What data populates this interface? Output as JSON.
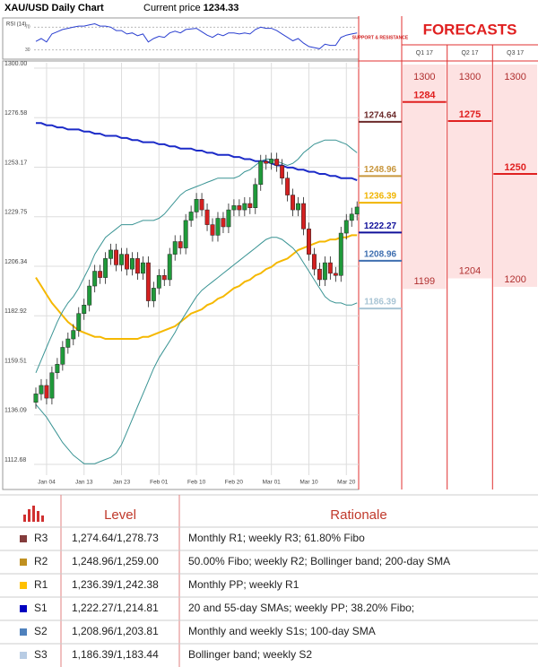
{
  "header": {
    "title": "XAU/USD Daily Chart",
    "current_price_label": "Current price",
    "current_price": 1234.33
  },
  "chart_data": [
    {
      "type": "candlestick",
      "categories": [
        null,
        null,
        "Jan 04",
        null,
        null,
        null,
        null,
        null,
        null,
        "Jan 13",
        null,
        null,
        null,
        null,
        null,
        null,
        "Jan 23",
        null,
        null,
        null,
        null,
        null,
        null,
        "Feb 01",
        null,
        null,
        null,
        null,
        null,
        null,
        "Feb 10",
        null,
        null,
        null,
        null,
        null,
        null,
        "Feb 20",
        null,
        null,
        null,
        null,
        null,
        null,
        "Mar 01",
        null,
        null,
        null,
        null,
        null,
        null,
        "Mar 10",
        null,
        null,
        null,
        null,
        null,
        null,
        "Mar 20",
        null,
        null
      ],
      "open": [
        1142,
        1146,
        1150,
        1144,
        1156,
        1160,
        1168,
        1172,
        1176,
        1184,
        1188,
        1197,
        1204,
        1201,
        1210,
        1214,
        1207,
        1212,
        1205,
        1210,
        1203,
        1208,
        1190,
        1196,
        1202,
        1200,
        1212,
        1218,
        1215,
        1228,
        1232,
        1238,
        1233,
        1226,
        1221,
        1229,
        1225,
        1233,
        1235,
        1233,
        1236,
        1234,
        1245,
        1256,
        1255,
        1257,
        1254,
        1248,
        1240,
        1233,
        1236,
        1224,
        1212,
        1205,
        1200,
        1208,
        1203,
        1202,
        1222,
        1228,
        1231
      ],
      "high": [
        1149,
        1153,
        1153,
        1159,
        1163,
        1171,
        1175,
        1179,
        1187,
        1191,
        1200,
        1207,
        1207,
        1213,
        1217,
        1217,
        1215,
        1215,
        1213,
        1213,
        1211,
        1211,
        1199,
        1205,
        1205,
        1215,
        1221,
        1221,
        1231,
        1235,
        1241,
        1241,
        1236,
        1229,
        1232,
        1232,
        1236,
        1238,
        1238,
        1239,
        1239,
        1248,
        1259,
        1259,
        1260,
        1260,
        1257,
        1251,
        1243,
        1239,
        1239,
        1227,
        1215,
        1208,
        1211,
        1211,
        1206,
        1225,
        1231,
        1234,
        1237
      ],
      "low": [
        1139,
        1143,
        1141,
        1141,
        1153,
        1157,
        1165,
        1169,
        1173,
        1181,
        1185,
        1194,
        1198,
        1198,
        1207,
        1204,
        1204,
        1202,
        1202,
        1200,
        1200,
        1187,
        1187,
        1193,
        1197,
        1197,
        1209,
        1212,
        1212,
        1225,
        1229,
        1230,
        1223,
        1218,
        1218,
        1222,
        1222,
        1230,
        1230,
        1230,
        1231,
        1231,
        1242,
        1252,
        1252,
        1251,
        1245,
        1237,
        1230,
        1230,
        1221,
        1209,
        1202,
        1197,
        1197,
        1200,
        1199,
        1199,
        1219,
        1225,
        1228
      ],
      "close": [
        1146,
        1150,
        1144,
        1156,
        1160,
        1168,
        1172,
        1176,
        1184,
        1188,
        1197,
        1204,
        1201,
        1210,
        1214,
        1207,
        1212,
        1205,
        1210,
        1203,
        1208,
        1190,
        1196,
        1202,
        1200,
        1212,
        1218,
        1215,
        1228,
        1232,
        1238,
        1233,
        1226,
        1221,
        1229,
        1225,
        1233,
        1235,
        1233,
        1236,
        1234,
        1245,
        1256,
        1255,
        1257,
        1254,
        1248,
        1240,
        1233,
        1236,
        1224,
        1212,
        1205,
        1200,
        1208,
        1203,
        1202,
        1222,
        1228,
        1231,
        1234.33
      ],
      "up_color": "#1f9a3a",
      "down_color": "#d42020",
      "series": [
        {
          "color": "#1c2bc8",
          "values": [
            1274,
            1274,
            1273,
            1273,
            1272,
            1272,
            1271,
            1271,
            1271,
            1270,
            1270,
            1269,
            1269,
            1268,
            1268,
            1268,
            1267,
            1267,
            1266,
            1266,
            1265,
            1265,
            1265,
            1264,
            1264,
            1263,
            1263,
            1262,
            1262,
            1262,
            1261,
            1261,
            1260,
            1260,
            1259,
            1259,
            1259,
            1258,
            1258,
            1257,
            1257,
            1256,
            1256,
            1256,
            1255,
            1254,
            1254,
            1253,
            1253,
            1252,
            1252,
            1251,
            1251,
            1250,
            1250,
            1249,
            1249,
            1248,
            1248,
            1248,
            1247
          ]
        },
        {
          "color": "#f5b800",
          "values": [
            1201,
            1197,
            1193,
            1189,
            1186,
            1183,
            1180,
            1178,
            1176,
            1175,
            1174,
            1173,
            1173,
            1172,
            1172,
            1172,
            1172,
            1172,
            1172,
            1172,
            1173,
            1173,
            1174,
            1175,
            1176,
            1177,
            1178,
            1180,
            1182,
            1184,
            1185,
            1186,
            1188,
            1189,
            1191,
            1192,
            1194,
            1196,
            1197,
            1199,
            1200,
            1202,
            1203,
            1205,
            1206,
            1208,
            1209,
            1210,
            1212,
            1214,
            1215,
            1216,
            1217,
            1218,
            1218,
            1219,
            1219,
            1220,
            1220,
            1221,
            1221
          ]
        },
        {
          "color": "#3a9494",
          "values": [
            1156,
            1162,
            1168,
            1174,
            1180,
            1185,
            1189,
            1192,
            1196,
            1201,
            1206,
            1212,
            1216,
            1220,
            1222,
            1224,
            1226,
            1226,
            1226,
            1227,
            1228,
            1228,
            1228,
            1229,
            1231,
            1234,
            1237,
            1240,
            1242,
            1243,
            1244,
            1245,
            1246,
            1247,
            1248,
            1248,
            1248,
            1248,
            1249,
            1251,
            1252,
            1254,
            1256,
            1257,
            1257,
            1256,
            1255,
            1254,
            1255,
            1257,
            1260,
            1262,
            1264,
            1265,
            1266,
            1266,
            1266,
            1265,
            1264,
            1262,
            1260
          ]
        },
        {
          "color": "#3a9494",
          "values": [
            1141,
            1138,
            1135,
            1131,
            1127,
            1123,
            1120,
            1117,
            1115,
            1113,
            1113,
            1113,
            1114,
            1115,
            1116,
            1118,
            1122,
            1128,
            1134,
            1140,
            1146,
            1152,
            1158,
            1163,
            1167,
            1171,
            1175,
            1180,
            1184,
            1188,
            1192,
            1195,
            1197,
            1199,
            1201,
            1203,
            1205,
            1207,
            1209,
            1211,
            1213,
            1215,
            1217,
            1219,
            1220,
            1220,
            1219,
            1217,
            1215,
            1212,
            1208,
            1204,
            1200,
            1196,
            1192,
            1190,
            1189,
            1189,
            1188,
            1188,
            1189
          ]
        }
      ],
      "ylim": [
        1112.68,
        1300
      ],
      "yticks": [
        {
          "value": 1300,
          "label": "1300.00"
        },
        {
          "value": 1276.58,
          "label": "1276.58"
        },
        {
          "value": 1253.17,
          "label": "1253.17"
        },
        {
          "value": 1229.75,
          "label": "1229.75"
        },
        {
          "value": 1206.34,
          "label": "1206.34"
        },
        {
          "value": 1182.92,
          "label": "1182.92"
        },
        {
          "value": 1159.51,
          "label": "1159.51"
        },
        {
          "value": 1136.09,
          "label": "1136.09"
        },
        {
          "value": 1112.68,
          "label": "1112.68"
        }
      ],
      "grid": true,
      "levels": {
        "title": "SUPPORT & RESISTANCE",
        "values": [
          1274.64,
          1248.96,
          1236.39,
          1222.27,
          1208.96,
          1186.39
        ],
        "colors": [
          "#6b2a2a",
          "#c8963c",
          "#f0b400",
          "#10109a",
          "#3f6fb0",
          "#a8c4d4"
        ]
      },
      "forecasts": {
        "title": "FORECASTS",
        "quarters": [
          "Q1 17",
          "Q2 17",
          "Q3 17"
        ],
        "high": [
          1300,
          1300,
          1300
        ],
        "forecast": [
          1284,
          1275,
          1250
        ],
        "low": [
          1199,
          1204,
          1200
        ],
        "color": "#e02020",
        "band_color": "#fde2e2"
      }
    },
    {
      "type": "line",
      "title": "RSI (14)",
      "color": "#2a3fd0",
      "ylim": [
        20,
        80
      ],
      "yticks": [
        70,
        30
      ],
      "values": [
        45,
        50,
        44,
        58,
        62,
        66,
        68,
        70,
        72,
        72,
        74,
        76,
        72,
        72,
        70,
        64,
        64,
        58,
        60,
        55,
        58,
        44,
        50,
        54,
        52,
        60,
        63,
        60,
        66,
        67,
        68,
        62,
        56,
        52,
        58,
        55,
        60,
        60,
        58,
        60,
        58,
        66,
        70,
        68,
        68,
        64,
        58,
        52,
        46,
        50,
        42,
        36,
        34,
        32,
        40,
        38,
        38,
        52,
        56,
        58,
        60
      ]
    }
  ],
  "table": {
    "columns": [
      "Level",
      "Rationale"
    ],
    "rows": [
      [
        "R3",
        "1,274.64/1,278.73",
        "Monthly R1; weekly R3; 61.80% Fibo"
      ],
      [
        "R2",
        "1,248.96/1,259.00",
        "50.00% Fibo; weekly R2; Bollinger band; 200-day SMA"
      ],
      [
        "R1",
        "1,236.39/1,242.38",
        "Monthly PP; weekly R1"
      ],
      [
        "S1",
        "1,222.27/1,214.81",
        "20 and 55-day SMAs; weekly PP; 38.20% Fibo;"
      ],
      [
        "S2",
        "1,208.96/1,203.81",
        "Monthly and weekly S1s; 100-day SMA"
      ],
      [
        "S3",
        "1,186.39/1,183.44",
        "Bollinger band; weekly S2"
      ]
    ],
    "colors": [
      "#843c3c",
      "#c09020",
      "#ffc000",
      "#0000c0",
      "#4f81bd",
      "#b8cce4"
    ]
  }
}
